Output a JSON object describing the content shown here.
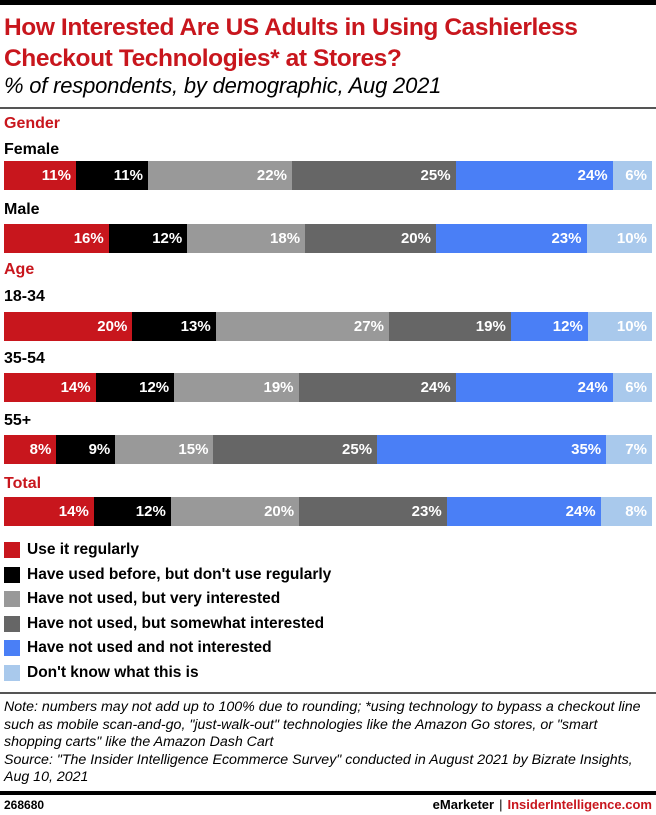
{
  "header": {
    "title": "How Interested Are US Adults in Using Cashierless Checkout Technologies* at Stores?",
    "subtitle": "% of respondents, by demographic, Aug 2021"
  },
  "chart_data": {
    "type": "bar",
    "orientation": "horizontal",
    "stacked": true,
    "title": "How Interested Are US Adults in Using Cashierless Checkout Technologies* at Stores?",
    "subtitle": "% of respondents, by demographic, Aug 2021",
    "unit": "%",
    "legend_position": "bottom",
    "series": [
      {
        "name": "Use it regularly",
        "color": "#c8161d"
      },
      {
        "name": "Have used before, but don't use regularly",
        "color": "#000000"
      },
      {
        "name": "Have not used, but very interested",
        "color": "#999999"
      },
      {
        "name": "Have not used, but somewhat interested",
        "color": "#666666"
      },
      {
        "name": "Have not used and not interested",
        "color": "#4a7ff6"
      },
      {
        "name": "Don't know what this is",
        "color": "#a9c9ec"
      }
    ],
    "groups": [
      {
        "name": "Gender",
        "rows": [
          {
            "label": "Female",
            "values": [
              11,
              11,
              22,
              25,
              24,
              6
            ]
          },
          {
            "label": "Male",
            "values": [
              16,
              12,
              18,
              20,
              23,
              10
            ]
          }
        ]
      },
      {
        "name": "Age",
        "rows": [
          {
            "label": "18-34",
            "values": [
              20,
              13,
              27,
              19,
              12,
              10
            ]
          },
          {
            "label": "35-54",
            "values": [
              14,
              12,
              19,
              24,
              24,
              6
            ]
          },
          {
            "label": "55+",
            "values": [
              8,
              9,
              15,
              25,
              35,
              7
            ]
          }
        ]
      },
      {
        "name": "Total",
        "rows": [
          {
            "label": "",
            "values": [
              14,
              12,
              20,
              23,
              24,
              8
            ]
          }
        ]
      }
    ]
  },
  "footer": {
    "note": "Note: numbers may not add up to 100% due to rounding; *using technology to bypass a checkout line such as mobile scan-and-go, \"just-walk-out\" technologies like the Amazon Go stores, or \"smart shopping carts\" like the Amazon Dash Cart",
    "source": "Source: \"The Insider Intelligence Ecommerce Survey\" conducted in August 2021 by Bizrate Insights, Aug 10, 2021",
    "chart_id": "268680",
    "brand_emarketer": "eMarketer",
    "brand_separator": "|",
    "brand_ii": "InsiderIntelligence.com"
  }
}
